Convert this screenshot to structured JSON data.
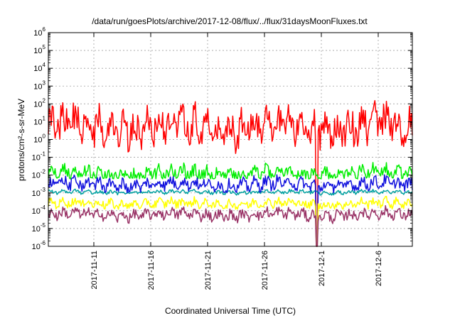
{
  "chart_data": {
    "type": "line",
    "title": "/data/run/goesPlots/archive/2017-12-08/flux/../flux/31daysMoonFluxes.txt",
    "xlabel": "Coordinated Universal Time (UTC)",
    "ylabel": "protons/cm²-s-sr-MeV",
    "yscale": "log",
    "ylim": [
      1e-06,
      1000000.0
    ],
    "xlim": [
      "2017-11-07",
      "2017-12-09"
    ],
    "grid": true,
    "x_ticks": [
      "2017-11-11",
      "2017-11-16",
      "2017-11-21",
      "2017-11-26",
      "2017-12-1",
      "2017-12-6"
    ],
    "y_ticks": [
      {
        "value": 1e-06,
        "base": "10",
        "exp": "-6"
      },
      {
        "value": 1e-05,
        "base": "10",
        "exp": "-5"
      },
      {
        "value": 0.0001,
        "base": "10",
        "exp": "-4"
      },
      {
        "value": 0.001,
        "base": "10",
        "exp": "-3"
      },
      {
        "value": 0.01,
        "base": "10",
        "exp": "-2"
      },
      {
        "value": 0.1,
        "base": "10",
        "exp": "-1"
      },
      {
        "value": 1,
        "base": "10",
        "exp": "0"
      },
      {
        "value": 10,
        "base": "10",
        "exp": "1"
      },
      {
        "value": 100,
        "base": "10",
        "exp": "2"
      },
      {
        "value": 1000,
        "base": "10",
        "exp": "3"
      },
      {
        "value": 10000,
        "base": "10",
        "exp": "4"
      },
      {
        "value": 100000,
        "base": "10",
        "exp": "5"
      },
      {
        "value": 1000000,
        "base": "10",
        "exp": "6"
      }
    ],
    "series": [
      {
        "color": "#ff0000",
        "level": 5,
        "spread": 1.1,
        "minv": 0.08,
        "dip": 1e-06
      },
      {
        "color": "#00ee00",
        "level": 0.012,
        "spread": 0.45,
        "minv": 0.006
      },
      {
        "color": "#00a0a0",
        "level": 0.0011,
        "spread": 0.12,
        "minv": 0.0007
      },
      {
        "color": "#1010dd",
        "level": 0.003,
        "spread": 0.4,
        "minv": 0.001,
        "dip": 1e-06
      },
      {
        "color": "#ffff00",
        "level": 0.00025,
        "spread": 0.3,
        "minv": 0.00012,
        "dip": 1e-06
      },
      {
        "color": "#993366",
        "level": 6e-05,
        "spread": 0.35,
        "minv": 1.5e-05,
        "dip": 1e-06
      }
    ]
  }
}
